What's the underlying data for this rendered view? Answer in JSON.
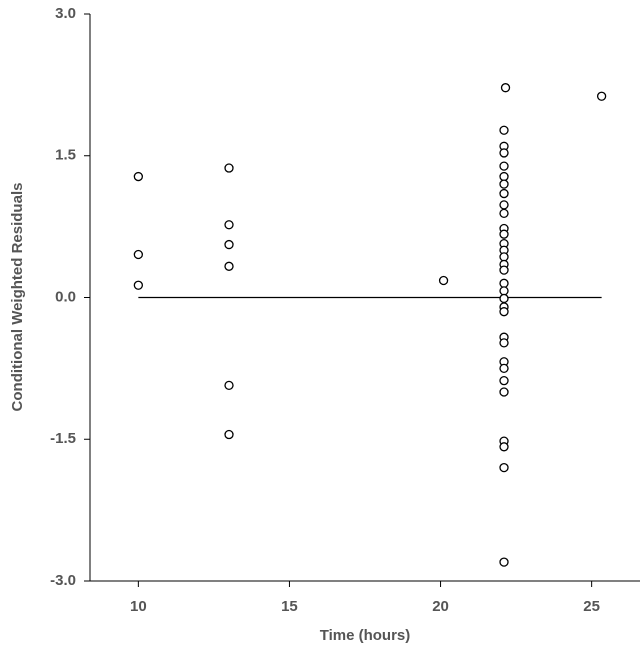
{
  "chart_data": {
    "type": "scatter",
    "xlabel": "Time (hours)",
    "ylabel": "Conditional Weighted Residuals",
    "xlim": [
      8.4,
      26.6
    ],
    "ylim": [
      -3,
      3
    ],
    "xticks": [
      10,
      15,
      20,
      25
    ],
    "yticks": [
      {
        "value": 3,
        "label": "3.0"
      },
      {
        "value": 1.5,
        "label": "1.5"
      },
      {
        "value": 0,
        "label": "0.0"
      },
      {
        "value": -1.5,
        "label": "-1.5"
      },
      {
        "value": -3,
        "label": "-3.0"
      }
    ],
    "hline": 0,
    "series": [
      {
        "color": "#000000",
        "x": [
          10,
          10,
          10,
          13,
          13,
          13,
          13,
          13,
          13,
          20.1,
          22.15,
          22.1,
          22.1,
          22.1,
          22.1,
          22.1,
          22.1,
          22.1,
          22.1,
          22.1,
          22.1,
          22.1,
          22.1,
          22.1,
          22.1,
          22.1,
          22.1,
          22.1,
          22.1,
          22.1,
          22.1,
          22.1,
          22.1,
          22.1,
          22.1,
          22.1,
          22.1,
          22.1,
          22.1,
          22.1,
          22.1,
          22.1,
          25.33
        ],
        "values": [
          1.28,
          0.455,
          0.13,
          1.37,
          0.77,
          0.56,
          0.33,
          -0.93,
          -1.45,
          0.18,
          2.22,
          1.77,
          1.6,
          1.53,
          1.39,
          1.28,
          1.2,
          1.1,
          0.98,
          0.89,
          0.73,
          0.67,
          0.57,
          0.5,
          0.43,
          0.35,
          0.29,
          0.15,
          0.07,
          -0.01,
          -0.1,
          -0.15,
          -0.42,
          -0.48,
          -0.68,
          -0.75,
          -0.88,
          -1.0,
          -1.52,
          -1.58,
          -1.8,
          -2.8,
          2.13
        ]
      }
    ]
  }
}
